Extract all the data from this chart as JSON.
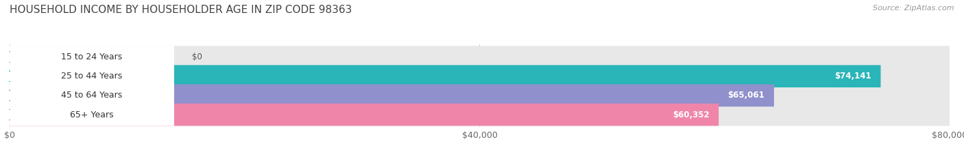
{
  "title": "HOUSEHOLD INCOME BY HOUSEHOLDER AGE IN ZIP CODE 98363",
  "source": "Source: ZipAtlas.com",
  "categories": [
    "15 to 24 Years",
    "25 to 44 Years",
    "45 to 64 Years",
    "65+ Years"
  ],
  "values": [
    0,
    74141,
    65061,
    60352
  ],
  "bar_colors": [
    "#c9a8d4",
    "#2ab5b8",
    "#9090cc",
    "#f085aa"
  ],
  "value_labels": [
    "$0",
    "$74,141",
    "$65,061",
    "$60,352"
  ],
  "xlim": [
    0,
    80000
  ],
  "xtick_values": [
    0,
    40000,
    80000
  ],
  "xtick_labels": [
    "$0",
    "$40,000",
    "$80,000"
  ],
  "background_color": "#ffffff",
  "bar_height": 0.58,
  "title_fontsize": 11,
  "label_fontsize": 9,
  "value_fontsize": 8.5,
  "source_fontsize": 8
}
